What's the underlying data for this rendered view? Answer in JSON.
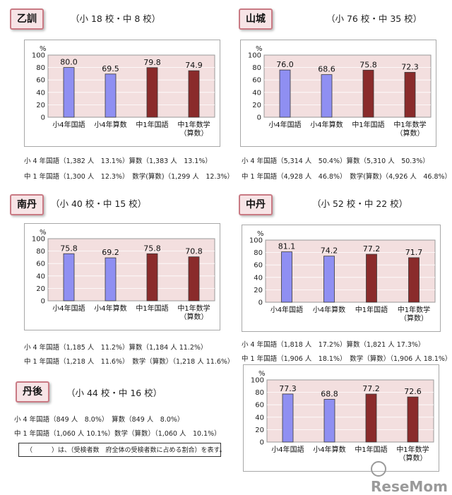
{
  "regions": [
    {
      "name": "乙訓",
      "counts": "（小 18 校・中 8 校）",
      "stat1": "小 4 年国語（1,382 人　13.1%）算数（1,383 人　13.1%）",
      "stat2": "中 1 年国語（1,300 人　12.3%）　数学(算数)（1,299 人　12.3%）"
    },
    {
      "name": "山城",
      "counts": "（小 76 校・中 35 校）",
      "stat1": "小 4 年国語（5,314 人　50.4%）算数（5,310 人　50.3%）",
      "stat2": "中 1 年国語（4,928 人　46.8%）　数学(算数)（4,926 人　46.8%）"
    },
    {
      "name": "南丹",
      "counts": "（小 40 校・中 15 校）",
      "stat1": "小 4 年国語（1,185 人　11.2%）算数（1,184 人 11.2%）",
      "stat2": "中 1 年国語（1,218 人　11.6%）　数学（算数）（1,218 人 11.6%）"
    },
    {
      "name": "中丹",
      "counts": "（小 52 校・中 22 校）",
      "stat1": "小 4 年国語（1,818 人　17.2%）算数（1,821 人 17.3%）",
      "stat2": "中 1 年国語（1,906 人　18.1%）　数学（算数）（1,906 人 18.1%）"
    },
    {
      "name": "丹後",
      "counts": "（小 44 校・中 16 校）",
      "stat1": "小 4 年国語（849 人　8.0%）　算数（849 人　8.0%）",
      "stat2": "中 1 年国語（1,060 人 10.1%）数学（算数）（1,060 人　10.1%）"
    }
  ],
  "note": "（　　　）は、（受検者数　府全体の受検者数に占める割合）を表す。",
  "logo": "ReseMom",
  "colors": {
    "blue": "#8f8ff2",
    "red": "#8a2b2b",
    "plot_bg": "#f3dfdf",
    "badge_border": "#c97a84"
  },
  "chart_data": [
    {
      "type": "bar",
      "region": "乙訓",
      "categories": [
        "小4年国語",
        "小4年算数",
        "中1年国語",
        "中1年数学\n（算数）"
      ],
      "values": [
        80.0,
        69.5,
        79.8,
        74.9
      ],
      "ylabel": "%",
      "ylim": [
        0,
        100
      ],
      "yticks": [
        0,
        20,
        40,
        60,
        80,
        100
      ]
    },
    {
      "type": "bar",
      "region": "山城",
      "categories": [
        "小4年国語",
        "小4年算数",
        "中1年国語",
        "中1年数学\n（算数）"
      ],
      "values": [
        76.0,
        68.6,
        75.8,
        72.3
      ],
      "ylabel": "%",
      "ylim": [
        0,
        100
      ],
      "yticks": [
        0,
        20,
        40,
        60,
        80,
        100
      ]
    },
    {
      "type": "bar",
      "region": "南丹",
      "categories": [
        "小4年国語",
        "小4年算数",
        "中1年国語",
        "中1年数学\n（算数）"
      ],
      "values": [
        75.8,
        69.2,
        75.8,
        70.8
      ],
      "ylabel": "%",
      "ylim": [
        0,
        100
      ],
      "yticks": [
        0,
        20,
        40,
        60,
        80,
        100
      ]
    },
    {
      "type": "bar",
      "region": "中丹",
      "categories": [
        "小4年国語",
        "小4年算数",
        "中1年国語",
        "中1年数学\n（算数）"
      ],
      "values": [
        81.1,
        74.2,
        77.2,
        71.7
      ],
      "ylabel": "%",
      "ylim": [
        0,
        100
      ],
      "yticks": [
        0,
        20,
        40,
        60,
        80,
        100
      ]
    },
    {
      "type": "bar",
      "region": "丹後",
      "categories": [
        "小4年国語",
        "小4年算数",
        "中1年国語",
        "中1年数学\n（算数）"
      ],
      "values": [
        77.3,
        68.8,
        77.2,
        72.6
      ],
      "ylabel": "%",
      "ylim": [
        0,
        100
      ],
      "yticks": [
        0,
        20,
        40,
        60,
        80,
        100
      ]
    }
  ]
}
